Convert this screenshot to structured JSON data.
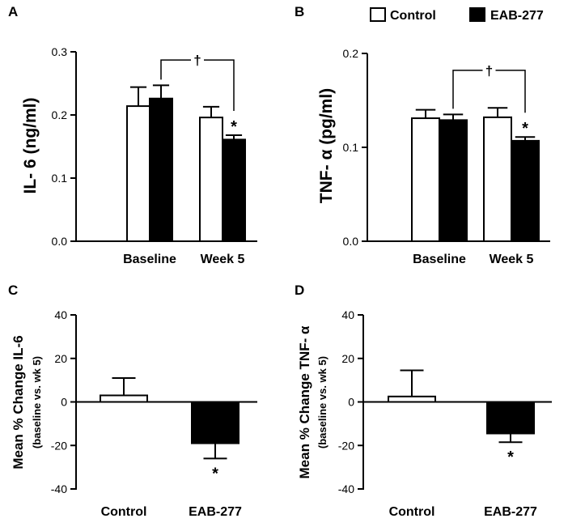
{
  "legend": {
    "items": [
      {
        "label": "Control",
        "color": "#ffffff"
      },
      {
        "label": "EAB-277",
        "color": "#000000"
      }
    ]
  },
  "colors": {
    "control": "#ffffff",
    "eab": "#000000",
    "axis": "#000000"
  },
  "chart_data": [
    {
      "id": "A",
      "type": "bar",
      "panel_label": "A",
      "ylabel": "IL- 6 (ng/ml)",
      "ylim": [
        0,
        0.3
      ],
      "yticks": [
        0.0,
        0.1,
        0.2,
        0.3
      ],
      "ytick_labels": [
        "0.0",
        "0.1",
        "0.2",
        "0.3"
      ],
      "categories": [
        "Baseline",
        "Week 5"
      ],
      "series": [
        {
          "name": "Control",
          "values": [
            0.214,
            0.196
          ],
          "errors": [
            0.03,
            0.017
          ]
        },
        {
          "name": "EAB-277",
          "values": [
            0.226,
            0.161
          ],
          "errors": [
            0.021,
            0.007
          ]
        }
      ],
      "annotations": [
        {
          "type": "star",
          "text": "*",
          "category": 1,
          "series": 1
        },
        {
          "type": "bracket",
          "text": "†",
          "from": [
            0,
            1
          ],
          "to": [
            1,
            1
          ],
          "y": 0.287
        }
      ]
    },
    {
      "id": "B",
      "type": "bar",
      "panel_label": "B",
      "ylabel": "TNF- α (pg/ml)",
      "ylim": [
        0,
        0.2
      ],
      "yticks": [
        0.0,
        0.1,
        0.2
      ],
      "ytick_labels": [
        "0.0",
        "0.1",
        "0.2"
      ],
      "categories": [
        "Baseline",
        "Week 5"
      ],
      "series": [
        {
          "name": "Control",
          "values": [
            0.131,
            0.132
          ],
          "errors": [
            0.009,
            0.01
          ]
        },
        {
          "name": "EAB-277",
          "values": [
            0.129,
            0.107
          ],
          "errors": [
            0.006,
            0.004
          ]
        }
      ],
      "annotations": [
        {
          "type": "star",
          "text": "*",
          "category": 1,
          "series": 1
        },
        {
          "type": "bracket",
          "text": "†",
          "from": [
            0,
            1
          ],
          "to": [
            1,
            1
          ],
          "y": 0.182
        }
      ]
    },
    {
      "id": "C",
      "type": "bar",
      "panel_label": "C",
      "ylabel": "Mean % Change IL-6",
      "ylabel_sub": "(baseline vs. wk 5)",
      "ylim": [
        -40,
        40
      ],
      "yticks": [
        -40,
        -20,
        0,
        20,
        40
      ],
      "ytick_labels": [
        "-40",
        "-20",
        "0",
        "20",
        "40"
      ],
      "categories": [
        "Control",
        "EAB-277"
      ],
      "values": [
        3,
        -19
      ],
      "errors": [
        8,
        7
      ],
      "fills": [
        "control",
        "eab"
      ],
      "annotations": [
        {
          "type": "star",
          "text": "*",
          "category": 1
        }
      ]
    },
    {
      "id": "D",
      "type": "bar",
      "panel_label": "D",
      "ylabel": "Mean % Change TNF- α",
      "ylabel_sub": "(baseline vs. wk 5)",
      "ylim": [
        -40,
        40
      ],
      "yticks": [
        -40,
        -20,
        0,
        20,
        40
      ],
      "ytick_labels": [
        "-40",
        "-20",
        "0",
        "20",
        "40"
      ],
      "categories": [
        "Control",
        "EAB-277"
      ],
      "values": [
        2.5,
        -14.5
      ],
      "errors": [
        12,
        4
      ],
      "fills": [
        "control",
        "eab"
      ],
      "annotations": [
        {
          "type": "star",
          "text": "*",
          "category": 1
        }
      ]
    }
  ]
}
